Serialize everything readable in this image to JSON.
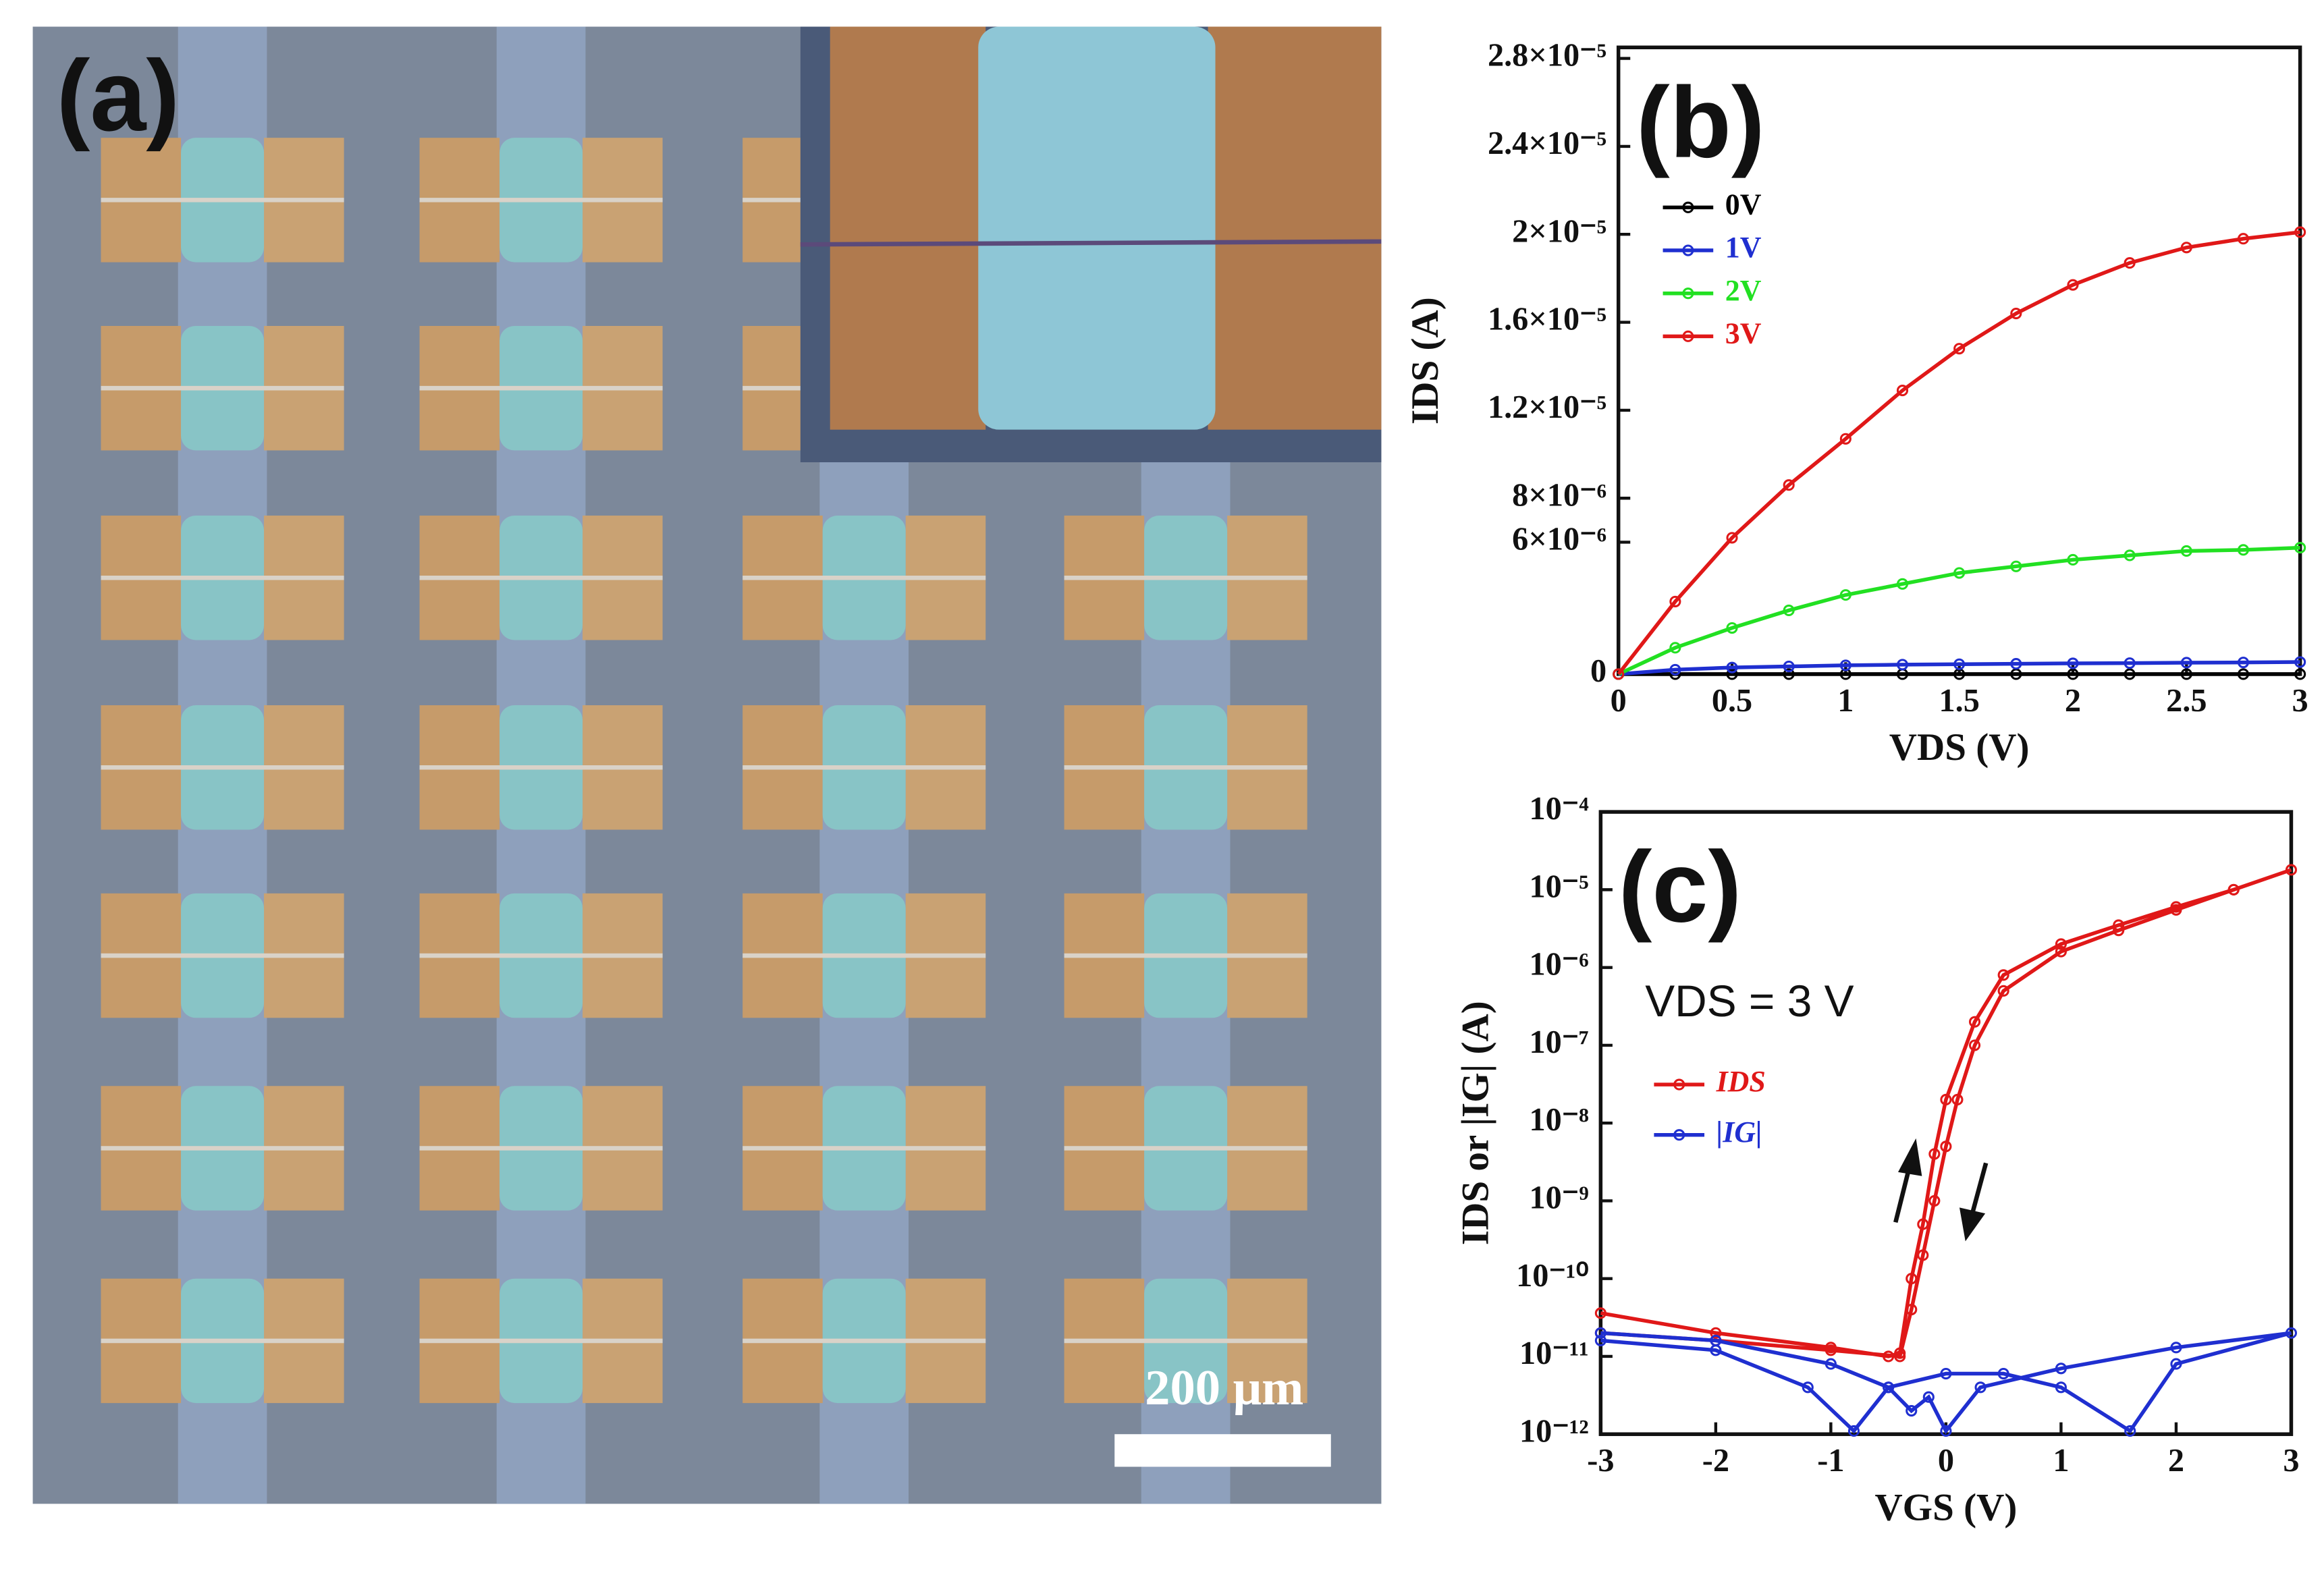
{
  "panel_a": {
    "label": "(a)",
    "scale_bar": "200 μm"
  },
  "chart_data": [
    {
      "type": "line",
      "panel_label": "(b)",
      "xlabel": "VDS (V)",
      "ylabel": "IDS (A)",
      "x": [
        0,
        0.25,
        0.5,
        0.75,
        1,
        1.25,
        1.5,
        1.75,
        2,
        2.25,
        2.5,
        2.75,
        3
      ],
      "series": [
        {
          "name": "0V",
          "color": "#000000",
          "values": [
            0,
            0,
            0,
            0,
            0,
            0,
            0,
            0,
            0,
            0,
            0,
            0,
            0
          ]
        },
        {
          "name": "1V",
          "color": "#1f2fd0",
          "values": [
            0,
            2e-07,
            3e-07,
            3.5e-07,
            4e-07,
            4.3e-07,
            4.5e-07,
            4.7e-07,
            4.9e-07,
            5e-07,
            5.2e-07,
            5.3e-07,
            5.5e-07
          ]
        },
        {
          "name": "2V",
          "color": "#22e022",
          "values": [
            0,
            1.2e-06,
            2.1e-06,
            2.9e-06,
            3.6e-06,
            4.1e-06,
            4.6e-06,
            4.9e-06,
            5.2e-06,
            5.4e-06,
            5.6e-06,
            5.65e-06,
            5.75e-06
          ]
        },
        {
          "name": "3V",
          "color": "#e01818",
          "values": [
            0,
            3.3e-06,
            6.2e-06,
            8.6e-06,
            1.07e-05,
            1.29e-05,
            1.48e-05,
            1.64e-05,
            1.77e-05,
            1.87e-05,
            1.94e-05,
            1.98e-05,
            2.01e-05
          ]
        }
      ],
      "xlim": [
        0,
        3
      ],
      "xticks": [
        0,
        0.5,
        1,
        1.5,
        2,
        2.5,
        3
      ],
      "ylim": [
        0,
        2.85e-05
      ],
      "yticks": [
        0,
        {
          "value": 6e-06,
          "label": "6×10⁻⁶"
        },
        {
          "value": 8e-06,
          "label": "8×10⁻⁶"
        },
        {
          "value": 1.2e-05,
          "label": "1.2×10⁻⁵"
        },
        {
          "value": 1.6e-05,
          "label": "1.6×10⁻⁵"
        },
        {
          "value": 2e-05,
          "label": "2×10⁻⁵"
        },
        {
          "value": 2.4e-05,
          "label": "2.4×10⁻⁵"
        },
        {
          "value": 2.8e-05,
          "label": "2.8×10⁻⁵"
        }
      ]
    },
    {
      "type": "line",
      "panel_label": "(c)",
      "xlabel": "VGS (V)",
      "ylabel": "IDS or |IG| (A)",
      "annotation": "VDS = 3 V",
      "log_y": true,
      "series": [
        {
          "name": "IDS",
          "color": "#e01818",
          "x": [
            -3,
            -2,
            -1,
            -0.5,
            -0.4,
            -0.3,
            -0.2,
            -0.1,
            0,
            0.25,
            0.5,
            1,
            1.5,
            2,
            2.5,
            3,
            2.5,
            2,
            1.5,
            1,
            0.5,
            0.25,
            0.1,
            0,
            -0.1,
            -0.2,
            -0.3,
            -0.4,
            -1,
            -2,
            -3
          ],
          "values": [
            3.6e-11,
            2e-11,
            1.3e-11,
            1e-11,
            1.1e-11,
            1e-10,
            5e-10,
            4e-09,
            2e-08,
            2e-07,
            8e-07,
            2e-06,
            3.5e-06,
            6e-06,
            1e-05,
            1.8e-05,
            1e-05,
            5.5e-06,
            3e-06,
            1.6e-06,
            5e-07,
            1e-07,
            2e-08,
            5e-09,
            1e-09,
            2e-10,
            4e-11,
            1e-11,
            1.2e-11,
            1.6e-11,
            2e-11
          ]
        },
        {
          "name": "|IG|",
          "color": "#1f2fd0",
          "x": [
            -3,
            -2,
            -1,
            -0.5,
            -0.3,
            -0.15,
            0,
            0.3,
            1,
            2,
            3,
            2,
            1.6,
            1,
            0.5,
            0,
            -0.5,
            -0.8,
            -1.2,
            -2,
            -3
          ],
          "values": [
            2e-11,
            1.6e-11,
            8e-12,
            4e-12,
            2e-12,
            3e-12,
            1.1e-12,
            4e-12,
            7e-12,
            1.3e-11,
            2e-11,
            8e-12,
            1.1e-12,
            4e-12,
            6e-12,
            6e-12,
            4e-12,
            1.1e-12,
            4e-12,
            1.2e-11,
            1.6e-11
          ]
        }
      ],
      "xlim": [
        -3,
        3
      ],
      "xticks": [
        -3,
        -2,
        -1,
        0,
        1,
        2,
        3
      ],
      "ylim": [
        1e-12,
        0.0001
      ],
      "yticks": [
        {
          "value": 1e-12,
          "label": "10⁻¹²"
        },
        {
          "value": 1e-11,
          "label": "10⁻¹¹"
        },
        {
          "value": 1e-10,
          "label": "10⁻¹⁰"
        },
        {
          "value": 1e-09,
          "label": "10⁻⁹"
        },
        {
          "value": 1e-08,
          "label": "10⁻⁸"
        },
        {
          "value": 1e-07,
          "label": "10⁻⁷"
        },
        {
          "value": 1e-06,
          "label": "10⁻⁶"
        },
        {
          "value": 1e-05,
          "label": "10⁻⁵"
        },
        {
          "value": 0.0001,
          "label": "10⁻⁴"
        }
      ]
    }
  ]
}
